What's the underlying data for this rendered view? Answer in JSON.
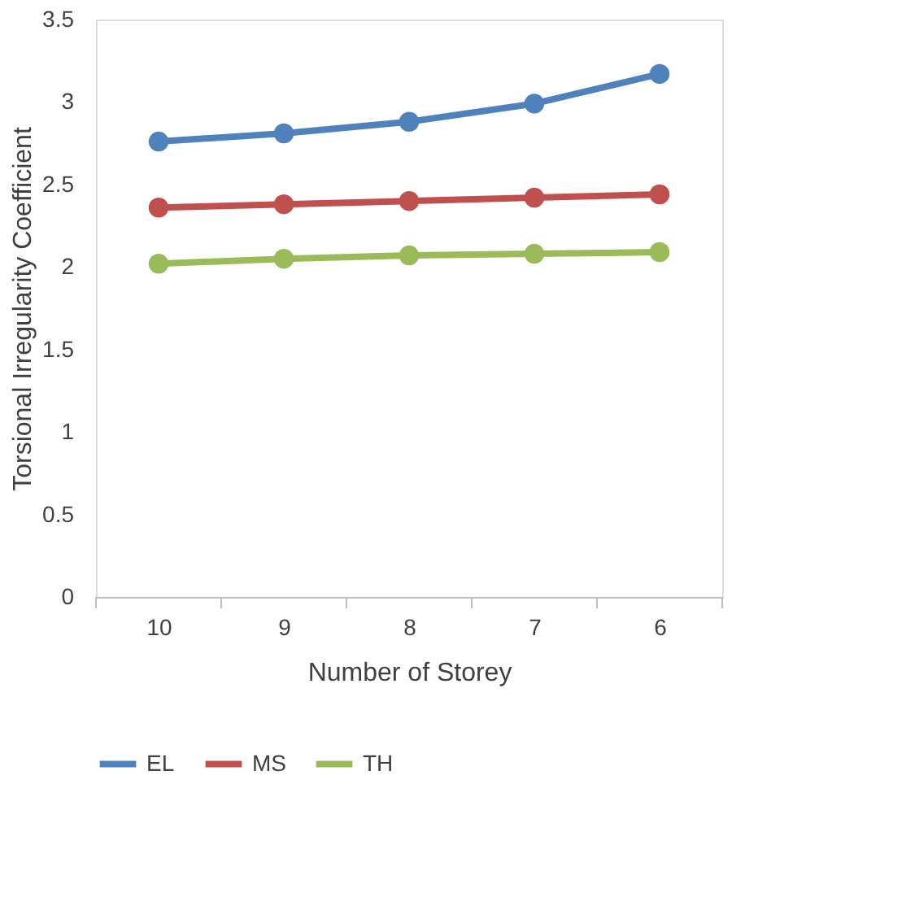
{
  "chart_data": {
    "type": "line",
    "xlabel": "Number of Storey",
    "ylabel": "Torsional Irregularity Coefficient",
    "categories": [
      "10",
      "9",
      "8",
      "7",
      "6"
    ],
    "series": [
      {
        "name": "EL",
        "color": "#4f81bd",
        "values": [
          2.76,
          2.81,
          2.88,
          2.99,
          3.17
        ]
      },
      {
        "name": "MS",
        "color": "#c0504d",
        "values": [
          2.36,
          2.38,
          2.4,
          2.42,
          2.44
        ]
      },
      {
        "name": "TH",
        "color": "#9bbb59",
        "values": [
          2.02,
          2.05,
          2.07,
          2.08,
          2.09
        ]
      }
    ],
    "ylim": [
      0,
      3.5
    ],
    "yticks": [
      0,
      0.5,
      1,
      1.5,
      2,
      2.5,
      3,
      3.5
    ],
    "grid": false,
    "legend": "bottom",
    "marker": "circle",
    "line_style": "solid"
  }
}
